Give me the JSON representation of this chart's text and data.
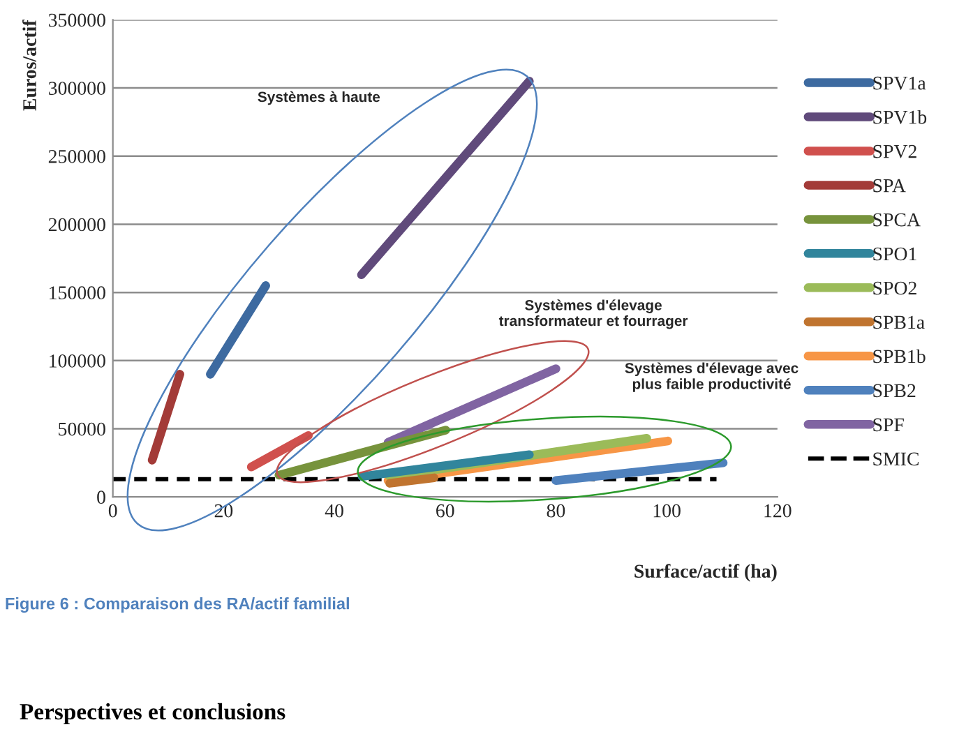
{
  "chart_data": {
    "type": "line",
    "xlabel": "Surface/actif (ha)",
    "ylabel": "Euros/actif",
    "xlim": [
      0,
      120
    ],
    "xticks": [
      0,
      20,
      40,
      60,
      80,
      100,
      120
    ],
    "ylim": [
      0,
      350000
    ],
    "yticks": [
      0,
      50000,
      100000,
      150000,
      200000,
      250000,
      300000,
      350000
    ],
    "grid": "y",
    "legend": "right",
    "marker": "none",
    "series": [
      {
        "name": "SPV1a",
        "color": "#3d6aa0",
        "x": [
          17.6,
          27.6
        ],
        "values": [
          90000,
          155000
        ]
      },
      {
        "name": "SPV1b",
        "color": "#604a7b",
        "x": [
          44.9,
          75.2
        ],
        "values": [
          163000,
          305000
        ]
      },
      {
        "name": "SPV2",
        "color": "#d0504d",
        "x": [
          25,
          35.3
        ],
        "values": [
          22000,
          45000
        ]
      },
      {
        "name": "SPA",
        "color": "#a33b38",
        "x": [
          7.1,
          12.1
        ],
        "values": [
          27000,
          90000
        ]
      },
      {
        "name": "SPCA",
        "color": "#77933c",
        "x": [
          30,
          60.1
        ],
        "values": [
          16000,
          49000
        ]
      },
      {
        "name": "SPO1",
        "color": "#31859c",
        "x": [
          45,
          75.2
        ],
        "values": [
          15000,
          31000
        ]
      },
      {
        "name": "SPO2",
        "color": "#9bbb59",
        "x": [
          50,
          96.4
        ],
        "values": [
          15000,
          43000
        ]
      },
      {
        "name": "SPB1a",
        "color": "#c0742f",
        "x": [
          50,
          58
        ],
        "values": [
          10000,
          14000
        ]
      },
      {
        "name": "SPB1b",
        "color": "#f79646",
        "x": [
          49.7,
          100.2
        ],
        "values": [
          12000,
          41000
        ]
      },
      {
        "name": "SPB2",
        "color": "#4f81bd",
        "x": [
          80,
          110.2
        ],
        "values": [
          12000,
          25000
        ]
      },
      {
        "name": "SPF",
        "color": "#8064a2",
        "x": [
          49.7,
          80
        ],
        "values": [
          40000,
          94000
        ]
      },
      {
        "name": "SMIC",
        "color": "#000000",
        "line_style": "dashed",
        "x": [
          0,
          109
        ],
        "values": [
          13000,
          13000
        ]
      }
    ],
    "annotations": [
      "Systèmes à haute",
      "Systèmes d'élevage\ntransformateur et fourrager",
      "Systèmes d'élevage avec\nplus faible productivité",
      "Figure 6 : Comparaison des RA/actif familial",
      "Perspectives et conclusions"
    ]
  }
}
